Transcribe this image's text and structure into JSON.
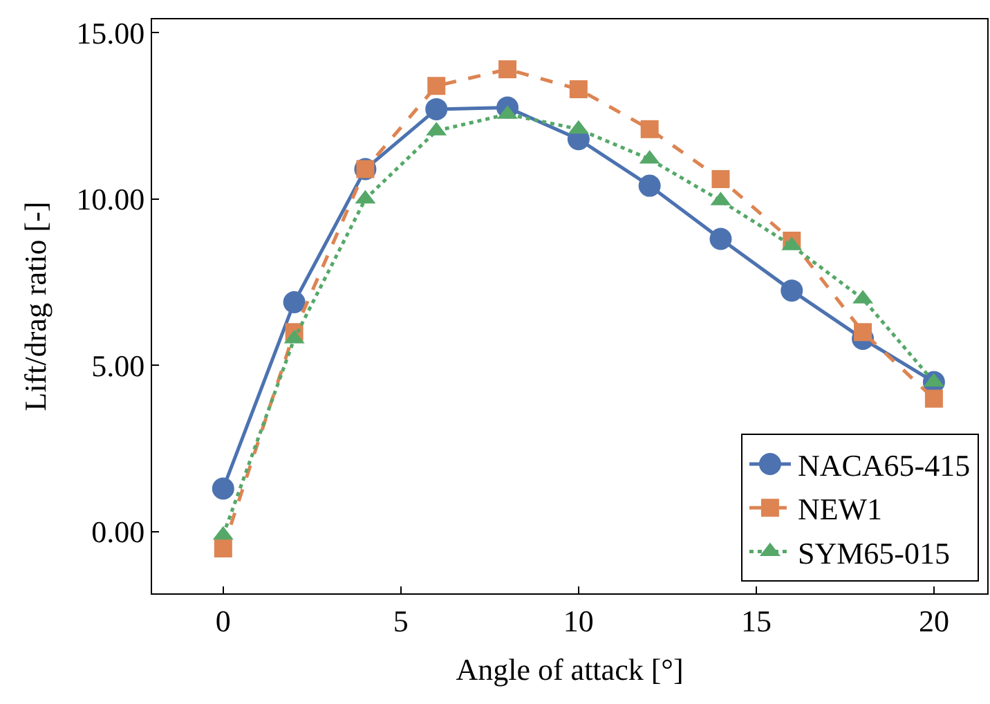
{
  "chart_data": {
    "type": "line",
    "xlabel": "Angle of attack [°]",
    "ylabel": "Lift/drag ratio [-]",
    "x": [
      0,
      2,
      4,
      6,
      8,
      10,
      12,
      14,
      16,
      18,
      20
    ],
    "series": [
      {
        "name": "NACA65-415",
        "color": "#4c72b0",
        "marker": "circle",
        "line_style": "solid",
        "values": [
          1.3,
          6.9,
          10.9,
          12.7,
          12.75,
          11.8,
          10.4,
          8.8,
          7.25,
          5.8,
          4.5
        ]
      },
      {
        "name": "NEW1",
        "color": "#dd8452",
        "marker": "square",
        "line_style": "dashed",
        "values": [
          -0.5,
          6.0,
          10.9,
          13.4,
          13.9,
          13.3,
          12.1,
          10.6,
          8.75,
          6.0,
          4.0
        ]
      },
      {
        "name": "SYM65-015",
        "color": "#55a868",
        "marker": "triangle",
        "line_style": "dotted",
        "values": [
          -0.1,
          5.8,
          10.0,
          12.05,
          12.55,
          12.1,
          11.2,
          9.95,
          8.6,
          7.0,
          4.5
        ]
      }
    ],
    "xlim": [
      -2,
      21.5
    ],
    "ylim": [
      -1.85,
      15.4
    ],
    "xticks": [
      0,
      5,
      10,
      15,
      20
    ],
    "yticks": [
      {
        "value": 0,
        "label": "0.00"
      },
      {
        "value": 5,
        "label": "5.00"
      },
      {
        "value": 10,
        "label": "10.00"
      },
      {
        "value": 15,
        "label": "15.00"
      }
    ],
    "legend": "bottom right"
  }
}
